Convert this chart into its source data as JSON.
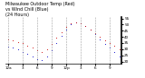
{
  "title": "Milwaukee Outdoor Temp (Red)",
  "title2": "vs Wind Chill (Blue)",
  "title3": "(24 Hours)",
  "bg_color": "#ffffff",
  "grid_color": "#888888",
  "temp_color": "#cc0000",
  "chill_color": "#0000cc",
  "hours": [
    0,
    1,
    2,
    3,
    4,
    5,
    6,
    7,
    8,
    9,
    10,
    11,
    12,
    13,
    14,
    15,
    16,
    17,
    18,
    19,
    20,
    21,
    22,
    23
  ],
  "temp": [
    38,
    37,
    36,
    35,
    33,
    31,
    29,
    28,
    30,
    34,
    39,
    44,
    48,
    51,
    52,
    51,
    49,
    46,
    43,
    40,
    37,
    35,
    33,
    30
  ],
  "chill": [
    32,
    31,
    30,
    28,
    26,
    24,
    22,
    21,
    24,
    29,
    35,
    41,
    46,
    50,
    52,
    51,
    49,
    46,
    42,
    38,
    34,
    31,
    28,
    24
  ],
  "ylim": [
    18,
    56
  ],
  "ytick_positions": [
    20,
    25,
    30,
    35,
    40,
    45,
    50,
    55
  ],
  "ytick_labels": [
    "20",
    "25",
    "30",
    "35",
    "40",
    "45",
    "50",
    "55"
  ],
  "xtick_positions": [
    0,
    3,
    6,
    9,
    12,
    15,
    18,
    21
  ],
  "xtick_labels": [
    "12a",
    "3",
    "6",
    "9",
    "12p",
    "3",
    "6",
    "9"
  ],
  "title_fontsize": 3.5,
  "tick_fontsize": 3.0,
  "marker_size": 1.5,
  "line_width": 0.7,
  "right_border_color": "#000000"
}
